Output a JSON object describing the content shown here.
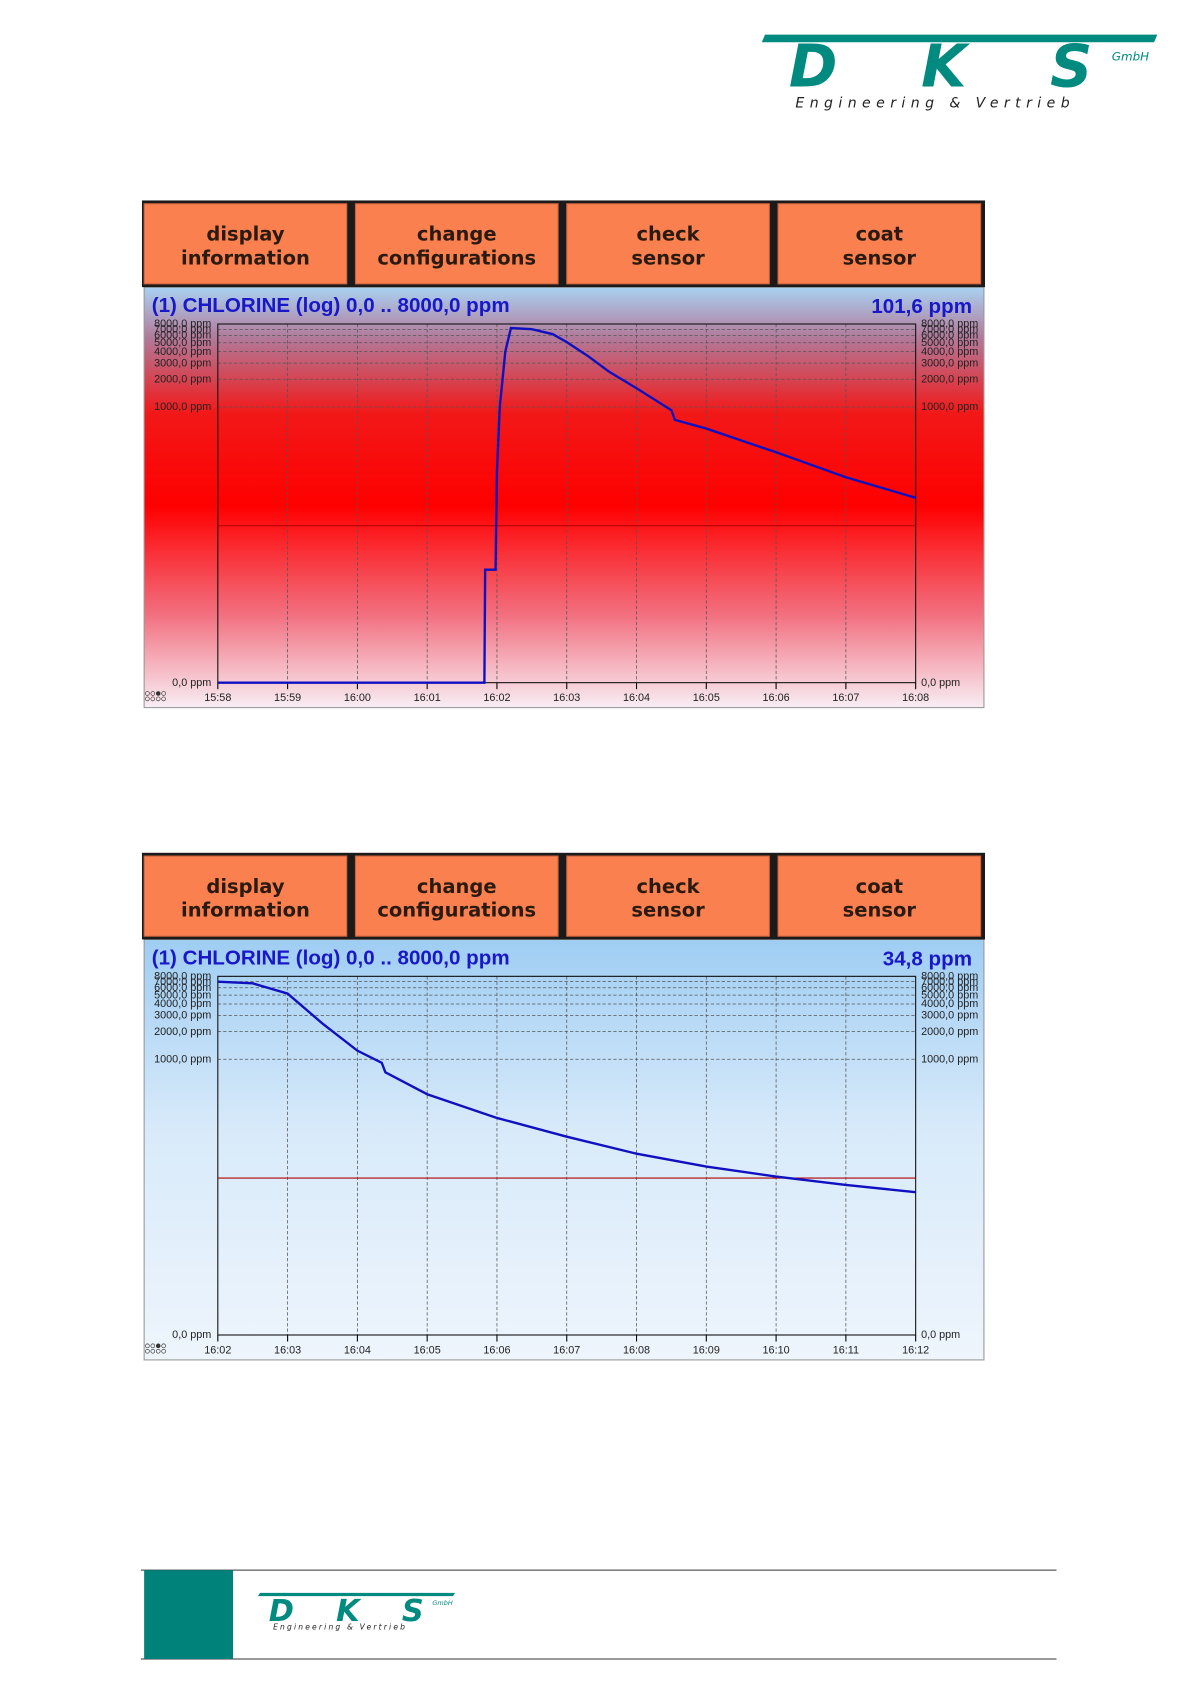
{
  "logo": {
    "name": "DKS",
    "suffix": "GmbH",
    "tagline": "Engineering & Vertrieb"
  },
  "screens": [
    {
      "buttons": [
        [
          "display",
          "information"
        ],
        [
          "change",
          "configurations"
        ],
        [
          "check",
          "sensor"
        ],
        [
          "coat",
          "sensor"
        ]
      ]
    },
    {
      "buttons": [
        [
          "display",
          "information"
        ],
        [
          "change",
          "configurations"
        ],
        [
          "check",
          "sensor"
        ],
        [
          "coat",
          "sensor"
        ]
      ]
    }
  ],
  "chart_data": [
    {
      "type": "line",
      "title": "(1) CHLORINE (log) 0,0 .. 8000,0 ppm",
      "reading": "101,6 ppm",
      "log_scale": true,
      "xlim": [
        958,
        968
      ],
      "xticks": [
        {
          "value": 958,
          "label": "15:58"
        },
        {
          "value": 959,
          "label": "15:59"
        },
        {
          "value": 960,
          "label": "16:00"
        },
        {
          "value": 961,
          "label": "16:01"
        },
        {
          "value": 962,
          "label": "16:02"
        },
        {
          "value": 963,
          "label": "16:03"
        },
        {
          "value": 964,
          "label": "16:04"
        },
        {
          "value": 965,
          "label": "16:05"
        },
        {
          "value": 966,
          "label": "16:06"
        },
        {
          "value": 967,
          "label": "16:07"
        },
        {
          "value": 968,
          "label": "16:08"
        }
      ],
      "ylim": [
        0,
        8000
      ],
      "yticks": [
        {
          "value": 0,
          "label": "0,0 ppm"
        },
        {
          "value": 1000,
          "label": "1000,0 ppm"
        },
        {
          "value": 2000,
          "label": "2000,0 ppm"
        },
        {
          "value": 3000,
          "label": "3000,0 ppm"
        },
        {
          "value": 4000,
          "label": "4000,0 ppm"
        },
        {
          "value": 5000,
          "label": "5000,0 ppm"
        },
        {
          "value": 6000,
          "label": "6000,0 ppm"
        },
        {
          "value": 7000,
          "label": "7000,0 ppm"
        },
        {
          "value": 8000,
          "label": "8000,0 ppm"
        }
      ],
      "grid": true,
      "threshold": 50,
      "threshold_color": "#b00000",
      "series": [
        {
          "color": "#1010c0",
          "x": [
            958,
            961.82,
            961.83,
            961.98,
            962.0,
            962.04,
            962.12,
            962.2,
            962.5,
            962.8,
            963.0,
            963.3,
            963.6,
            964.0,
            964.5,
            964.55,
            965,
            966,
            967,
            968
          ],
          "values": [
            0,
            0,
            16,
            16,
            200,
            1000,
            4000,
            7230,
            7030,
            6200,
            5080,
            3600,
            2440,
            1600,
            920,
            722,
            581,
            320,
            171,
            101.6
          ]
        }
      ]
    },
    {
      "type": "line",
      "title": "(1) CHLORINE (log) 0,0 .. 8000,0 ppm",
      "reading": "34,8 ppm",
      "log_scale": true,
      "xlim": [
        962,
        972
      ],
      "xticks": [
        {
          "value": 962,
          "label": "16:02"
        },
        {
          "value": 963,
          "label": "16:03"
        },
        {
          "value": 964,
          "label": "16:04"
        },
        {
          "value": 965,
          "label": "16:05"
        },
        {
          "value": 966,
          "label": "16:06"
        },
        {
          "value": 967,
          "label": "16:07"
        },
        {
          "value": 968,
          "label": "16:08"
        },
        {
          "value": 969,
          "label": "16:09"
        },
        {
          "value": 970,
          "label": "16:10"
        },
        {
          "value": 971,
          "label": "16:11"
        },
        {
          "value": 972,
          "label": "16:12"
        }
      ],
      "ylim": [
        0,
        8000
      ],
      "yticks": [
        {
          "value": 0,
          "label": "0,0 ppm"
        },
        {
          "value": 1000,
          "label": "1000,0 ppm"
        },
        {
          "value": 2000,
          "label": "2000,0 ppm"
        },
        {
          "value": 3000,
          "label": "3000,0 ppm"
        },
        {
          "value": 4000,
          "label": "4000,0 ppm"
        },
        {
          "value": 5000,
          "label": "5000,0 ppm"
        },
        {
          "value": 6000,
          "label": "6000,0 ppm"
        },
        {
          "value": 7000,
          "label": "7000,0 ppm"
        },
        {
          "value": 8000,
          "label": "8000,0 ppm"
        }
      ],
      "grid": true,
      "threshold": 50,
      "threshold_color": "#b00000",
      "series": [
        {
          "color": "#1010c0",
          "x": [
            962,
            962.5,
            963,
            963.5,
            964,
            964.35,
            964.4,
            965,
            966,
            967,
            968,
            969,
            970,
            971,
            972
          ],
          "values": [
            7000,
            6700,
            5200,
            2450,
            1240,
            915,
            720,
            416,
            229,
            143,
            93,
            67,
            52,
            42,
            34.8
          ]
        }
      ]
    }
  ]
}
